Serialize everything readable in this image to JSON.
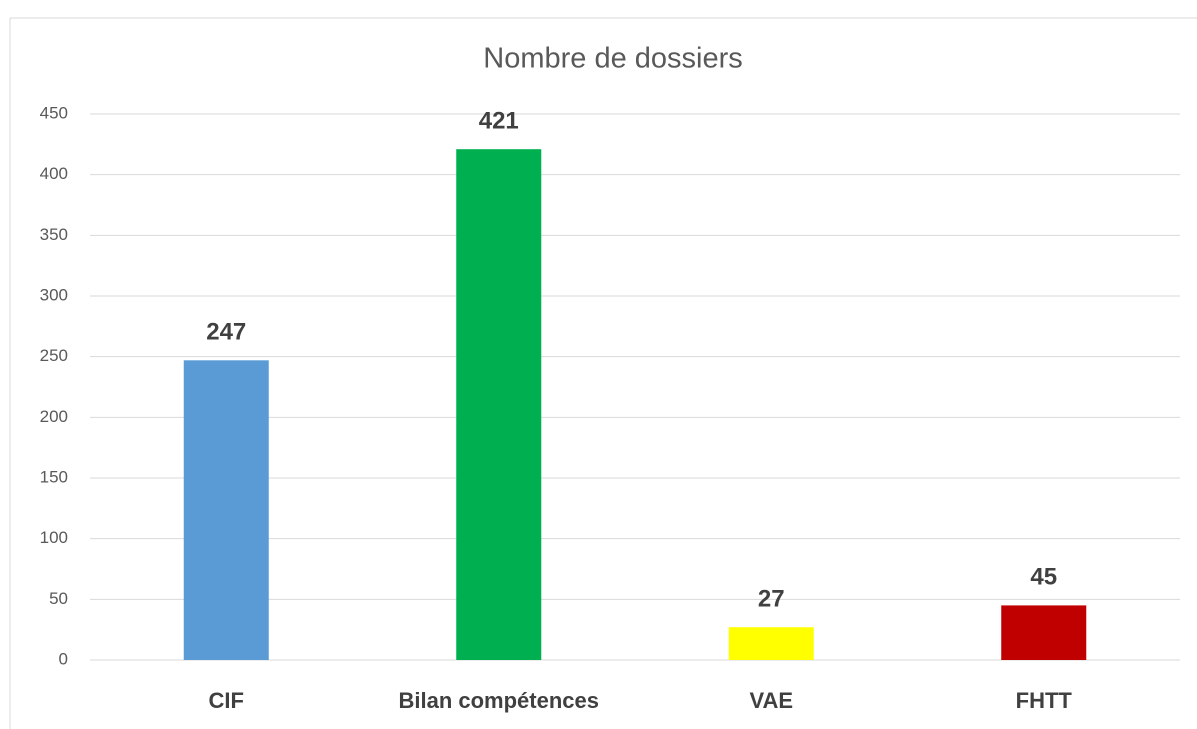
{
  "chart_data": {
    "type": "bar",
    "title": "Nombre de dossiers",
    "categories": [
      "CIF",
      "Bilan compétences",
      "VAE",
      "FHTT"
    ],
    "values": [
      247,
      421,
      27,
      45
    ],
    "colors": [
      "#5b9bd5",
      "#00b050",
      "#ffff00",
      "#c00000"
    ],
    "ylim": [
      0,
      450
    ],
    "yticks": [
      0,
      50,
      100,
      150,
      200,
      250,
      300,
      350,
      400,
      450
    ],
    "grid": true
  }
}
